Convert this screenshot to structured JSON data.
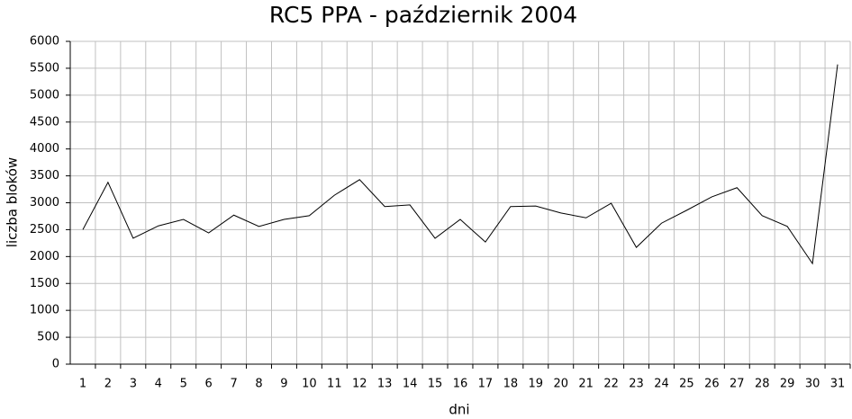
{
  "chart_data": {
    "type": "line",
    "title": "RC5 PPA - październik 2004",
    "x_label": "dni",
    "y_label": "liczba bloków",
    "categories": [
      "1",
      "2",
      "3",
      "4",
      "5",
      "6",
      "7",
      "8",
      "9",
      "10",
      "11",
      "12",
      "13",
      "14",
      "15",
      "16",
      "17",
      "18",
      "19",
      "20",
      "21",
      "22",
      "23",
      "24",
      "25",
      "26",
      "27",
      "28",
      "29",
      "30",
      "31"
    ],
    "values": [
      2500,
      3380,
      2340,
      2570,
      2690,
      2440,
      2770,
      2560,
      2690,
      2760,
      3140,
      3430,
      2930,
      2960,
      2340,
      2690,
      2270,
      2930,
      2940,
      2810,
      2720,
      2990,
      2170,
      2620,
      2860,
      3110,
      3280,
      2760,
      2560,
      1870,
      5570
    ],
    "color": "#000000",
    "ylim": [
      0,
      6000
    ],
    "yticks": [
      0,
      500,
      1000,
      1500,
      2000,
      2500,
      3000,
      3500,
      4000,
      4500,
      5000,
      5500,
      6000
    ],
    "grid": true
  }
}
